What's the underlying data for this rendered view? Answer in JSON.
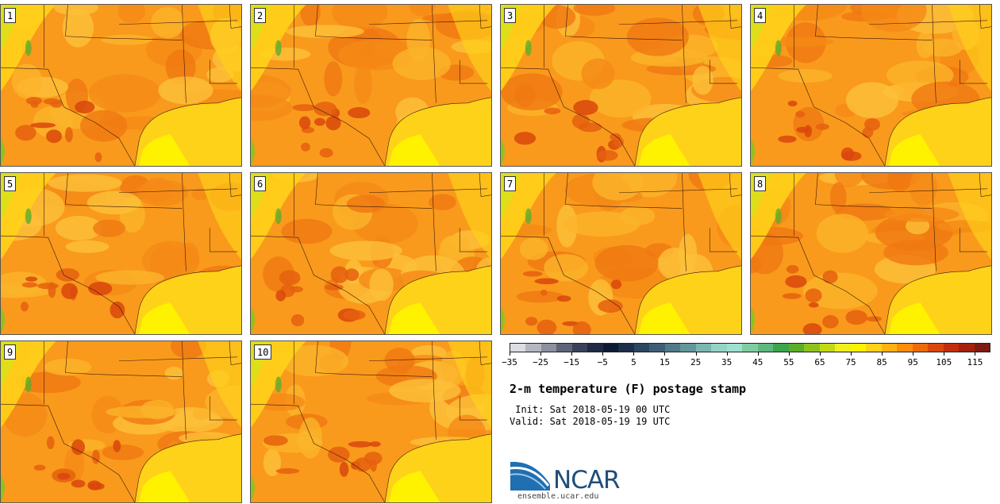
{
  "panels": [
    {
      "label": "1"
    },
    {
      "label": "2"
    },
    {
      "label": "3"
    },
    {
      "label": "4"
    },
    {
      "label": "5"
    },
    {
      "label": "6"
    },
    {
      "label": "7"
    },
    {
      "label": "8"
    },
    {
      "label": "9"
    },
    {
      "label": "10"
    }
  ],
  "colorbar": {
    "colors": [
      "#dcdce3",
      "#b4b6c0",
      "#8b8f9e",
      "#5f6579",
      "#3a415a",
      "#1f2a44",
      "#0e1a33",
      "#1c2e4a",
      "#2c4560",
      "#3e5e75",
      "#4f7a88",
      "#63979b",
      "#7cb6b0",
      "#94d4c6",
      "#9ee0cf",
      "#7fcca2",
      "#5fb87e",
      "#3ea54c",
      "#5cae2a",
      "#8fc21e",
      "#c3d916",
      "#f1f01e",
      "#fff200",
      "#ffd21a",
      "#ffb012",
      "#ff8c0c",
      "#ee6a0a",
      "#d9470c",
      "#c22d0e",
      "#a5200f",
      "#7e1a12"
    ],
    "tick_labels": [
      "−35",
      "−25",
      "−15",
      "−5",
      "5",
      "15",
      "25",
      "35",
      "45",
      "55",
      "65",
      "75",
      "85",
      "95",
      "105",
      "115"
    ]
  },
  "title": "2-m temperature (F) postage stamp",
  "init": " Init: Sat 2018-05-19 00 UTC",
  "valid": "Valid: Sat 2018-05-19 19 UTC",
  "logo": {
    "text": "NCAR",
    "site": "ensemble.ucar.edu"
  }
}
